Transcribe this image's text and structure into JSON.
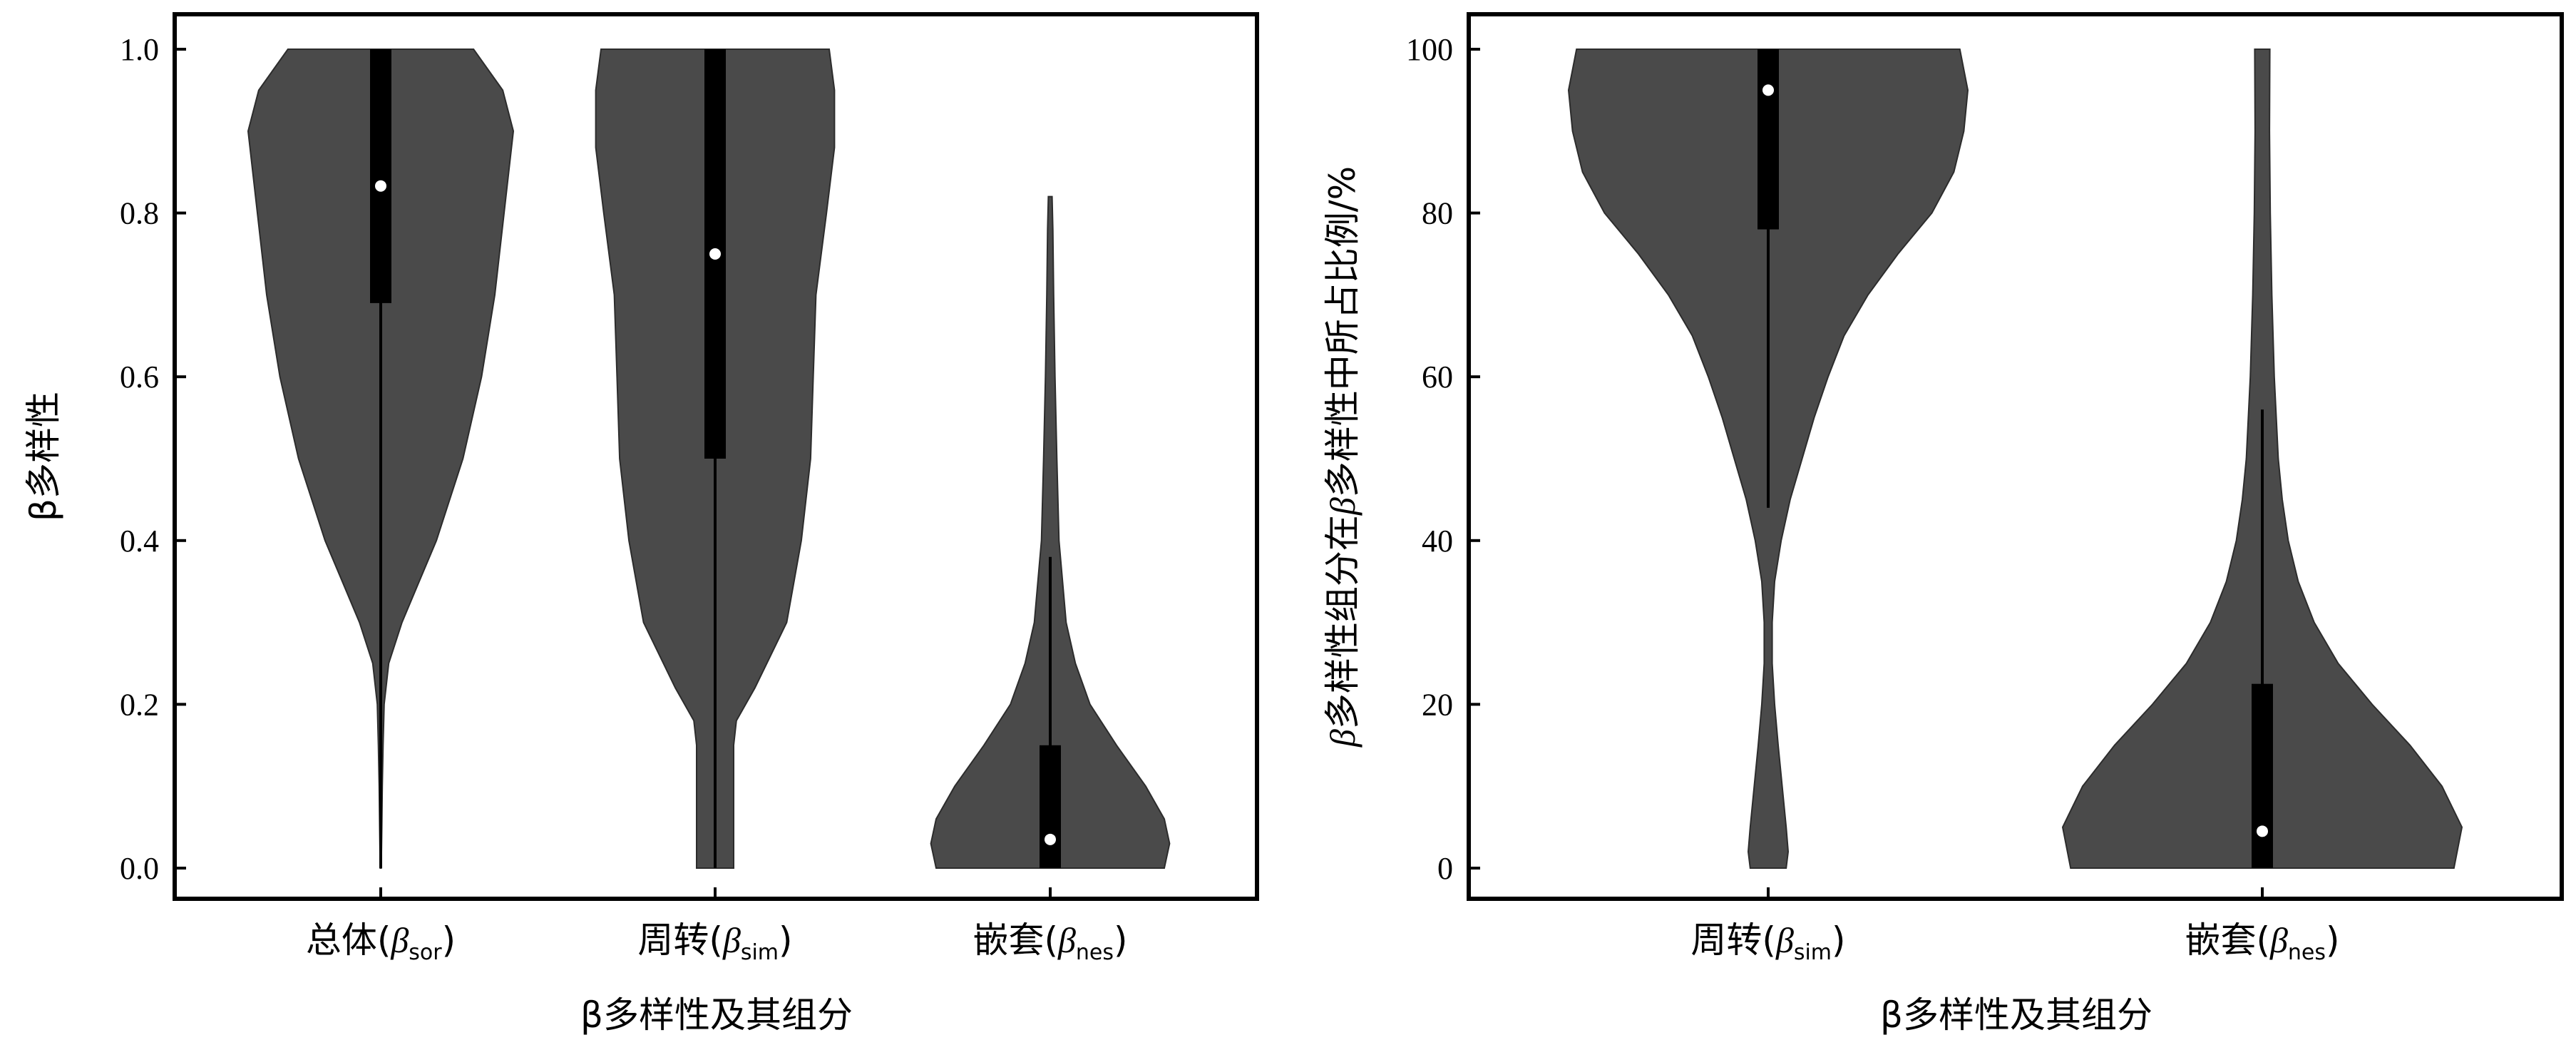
{
  "chart_data": [
    {
      "type": "violin",
      "ylabel": "β多样性",
      "xlabel": "β多样性及其组分",
      "ylim": [
        0,
        1
      ],
      "yticks": [
        "0.0",
        "0.2",
        "0.4",
        "0.6",
        "0.8",
        "1.0"
      ],
      "categories": [
        {
          "pre": "总体(",
          "beta": "β",
          "sub": "sor",
          "post": ")"
        },
        {
          "pre": "周转(",
          "beta": "β",
          "sub": "sim",
          "post": ")"
        },
        {
          "pre": "嵌套(",
          "beta": "β",
          "sub": "nes",
          "post": ")"
        }
      ],
      "violins": [
        {
          "min": 0.0,
          "max": 1.0,
          "q1": 0.69,
          "median": 0.833,
          "q3": 1.0,
          "whisker_low": 0.0,
          "whisker_high": 1.0,
          "profile": [
            [
              0.0,
              0.004
            ],
            [
              0.05,
              0.008
            ],
            [
              0.1,
              0.012
            ],
            [
              0.15,
              0.018
            ],
            [
              0.2,
              0.026
            ],
            [
              0.25,
              0.06
            ],
            [
              0.3,
              0.16
            ],
            [
              0.35,
              0.29
            ],
            [
              0.4,
              0.42
            ],
            [
              0.5,
              0.62
            ],
            [
              0.6,
              0.76
            ],
            [
              0.7,
              0.86
            ],
            [
              0.8,
              0.93
            ],
            [
              0.9,
              1.0
            ],
            [
              0.95,
              0.92
            ],
            [
              1.0,
              0.7
            ]
          ]
        },
        {
          "min": 0.0,
          "max": 1.0,
          "q1": 0.5,
          "median": 0.75,
          "q3": 1.0,
          "whisker_low": 0.0,
          "whisker_high": 1.0,
          "profile": [
            [
              0.0,
              0.14
            ],
            [
              0.15,
              0.14
            ],
            [
              0.18,
              0.16
            ],
            [
              0.22,
              0.3
            ],
            [
              0.3,
              0.54
            ],
            [
              0.4,
              0.65
            ],
            [
              0.5,
              0.72
            ],
            [
              0.6,
              0.74
            ],
            [
              0.7,
              0.76
            ],
            [
              0.8,
              0.84
            ],
            [
              0.88,
              0.9
            ],
            [
              0.95,
              0.9
            ],
            [
              1.0,
              0.86
            ]
          ]
        },
        {
          "min": 0.0,
          "max": 0.82,
          "q1": 0.0,
          "median": 0.035,
          "q3": 0.15,
          "whisker_low": 0.0,
          "whisker_high": 0.38,
          "profile": [
            [
              0.0,
              0.86
            ],
            [
              0.03,
              0.9
            ],
            [
              0.06,
              0.86
            ],
            [
              0.1,
              0.72
            ],
            [
              0.15,
              0.5
            ],
            [
              0.2,
              0.3
            ],
            [
              0.25,
              0.19
            ],
            [
              0.3,
              0.12
            ],
            [
              0.4,
              0.066
            ],
            [
              0.5,
              0.05
            ],
            [
              0.6,
              0.036
            ],
            [
              0.7,
              0.026
            ],
            [
              0.78,
              0.02
            ],
            [
              0.82,
              0.014
            ]
          ]
        }
      ]
    },
    {
      "type": "violin",
      "ylabel_pre": "β",
      "ylabel": "多样性组分在",
      "ylabel_mid": "β",
      "ylabel_post": "多样性中所占比例/%",
      "xlabel": "β多样性及其组分",
      "ylim": [
        0,
        100
      ],
      "yticks": [
        "0",
        "20",
        "40",
        "60",
        "80",
        "100"
      ],
      "categories": [
        {
          "pre": "周转(",
          "beta": "β",
          "sub": "sim",
          "post": ")"
        },
        {
          "pre": "嵌套(",
          "beta": "β",
          "sub": "nes",
          "post": ")"
        }
      ],
      "violins": [
        {
          "min": 0,
          "max": 100,
          "q1": 78,
          "median": 95,
          "q3": 100,
          "whisker_low": 44,
          "whisker_high": 100,
          "profile": [
            [
              0,
              0.09
            ],
            [
              2,
              0.1
            ],
            [
              5,
              0.09
            ],
            [
              10,
              0.07
            ],
            [
              15,
              0.05
            ],
            [
              20,
              0.032
            ],
            [
              25,
              0.02
            ],
            [
              30,
              0.02
            ],
            [
              35,
              0.032
            ],
            [
              40,
              0.065
            ],
            [
              45,
              0.11
            ],
            [
              50,
              0.17
            ],
            [
              55,
              0.23
            ],
            [
              60,
              0.3
            ],
            [
              65,
              0.38
            ],
            [
              70,
              0.5
            ],
            [
              75,
              0.65
            ],
            [
              80,
              0.82
            ],
            [
              85,
              0.93
            ],
            [
              90,
              0.98
            ],
            [
              95,
              1.0
            ],
            [
              100,
              0.96
            ]
          ]
        },
        {
          "min": 0,
          "max": 100,
          "q1": 0,
          "median": 4.5,
          "q3": 22.5,
          "whisker_low": 0,
          "whisker_high": 56,
          "profile": [
            [
              0,
              0.96
            ],
            [
              5,
              1.0
            ],
            [
              10,
              0.9
            ],
            [
              15,
              0.74
            ],
            [
              20,
              0.55
            ],
            [
              25,
              0.38
            ],
            [
              30,
              0.26
            ],
            [
              35,
              0.18
            ],
            [
              40,
              0.13
            ],
            [
              45,
              0.1
            ],
            [
              50,
              0.08
            ],
            [
              60,
              0.06
            ],
            [
              70,
              0.048
            ],
            [
              80,
              0.04
            ],
            [
              90,
              0.036
            ],
            [
              100,
              0.038
            ]
          ]
        }
      ]
    }
  ]
}
